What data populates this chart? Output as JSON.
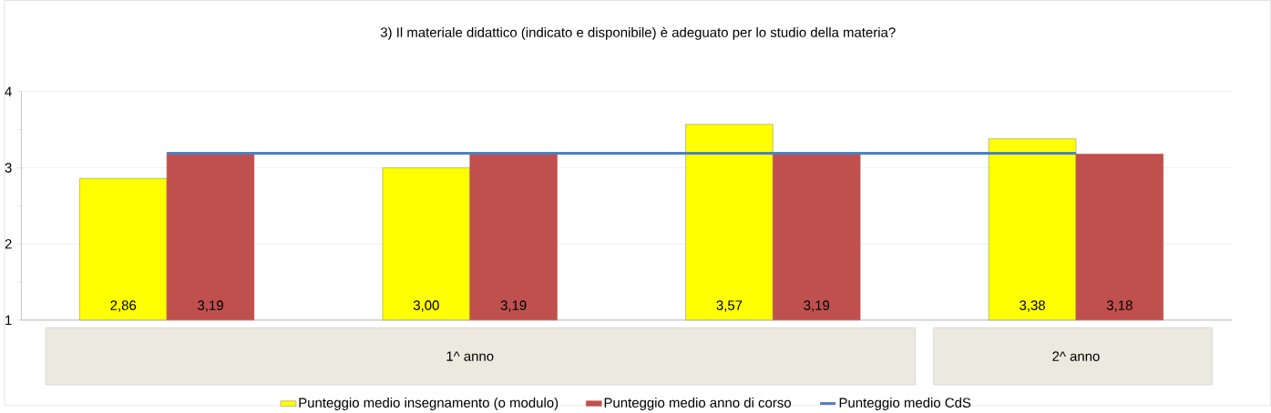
{
  "chart_data": {
    "type": "bar",
    "title": "3) Il materiale didattico (indicato e disponibile) è adeguato per lo studio della materia?",
    "categories": [
      null,
      null,
      null,
      null
    ],
    "series": [
      {
        "name": "Punteggio medio insegnamento (o modulo)",
        "color": "#ffff00",
        "values": [
          2.86,
          3.0,
          3.57,
          3.38
        ],
        "value_labels": [
          "2,86",
          "3,00",
          "3,57",
          "3,38"
        ]
      },
      {
        "name": "Punteggio medio anno di corso",
        "color": "#c0504d",
        "values": [
          3.19,
          3.19,
          3.19,
          3.18
        ],
        "value_labels": [
          "3,19",
          "3,19",
          "3,19",
          "3,18"
        ]
      },
      {
        "name": "Punteggio medio CdS",
        "type": "line",
        "color": "#4f81bd",
        "values": [
          3.19,
          3.19,
          3.19,
          3.19
        ]
      }
    ],
    "annotations": [
      "1^ anno",
      "2^ anno"
    ],
    "ylim": [
      1,
      4
    ],
    "yticks": [
      1,
      2,
      3,
      4
    ],
    "grid": "y",
    "legend": "bottom",
    "marker": "none"
  }
}
